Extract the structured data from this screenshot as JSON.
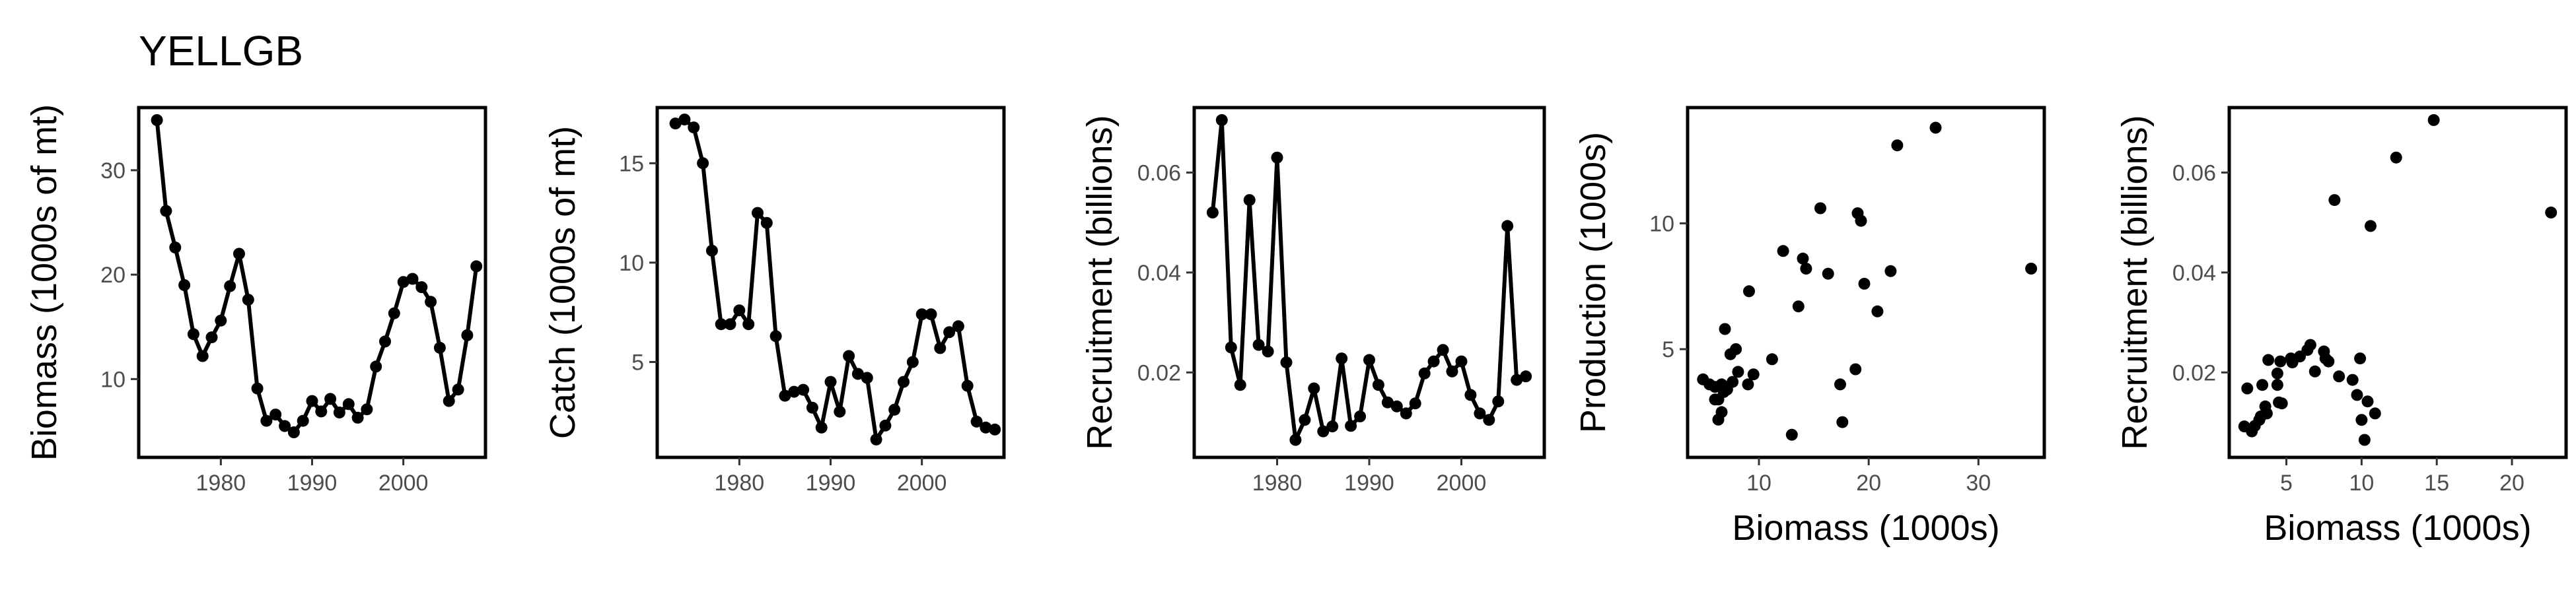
{
  "title": "YELLGB",
  "chart_data": [
    {
      "type": "line",
      "xlabel": "",
      "ylabel": "Biomass (1000s of mt)",
      "xlim": [
        1971,
        2009
      ],
      "ylim": [
        2.5,
        36
      ],
      "xticks": [
        1980,
        1990,
        2000
      ],
      "yticks": [
        10,
        20,
        30
      ],
      "x": [
        1973,
        1974,
        1975,
        1976,
        1977,
        1978,
        1979,
        1980,
        1981,
        1982,
        1983,
        1984,
        1985,
        1986,
        1987,
        1988,
        1989,
        1990,
        1991,
        1992,
        1993,
        1994,
        1995,
        1996,
        1997,
        1998,
        1999,
        2000,
        2001,
        2002,
        2003,
        2004,
        2005,
        2006,
        2007,
        2008
      ],
      "y": [
        34.8,
        26.1,
        22.6,
        19.0,
        14.3,
        12.2,
        14.0,
        15.6,
        18.9,
        22.0,
        17.6,
        9.1,
        6.0,
        6.6,
        5.5,
        4.9,
        6.0,
        7.9,
        6.9,
        8.1,
        6.8,
        7.6,
        6.3,
        7.1,
        11.2,
        13.6,
        16.3,
        19.3,
        19.6,
        18.8,
        17.4,
        13.0,
        7.9,
        9.0,
        14.2,
        20.8
      ]
    },
    {
      "type": "line",
      "xlabel": "",
      "ylabel": "Catch (1000s of mt)",
      "xlim": [
        1971,
        2009
      ],
      "ylim": [
        0.2,
        17.8
      ],
      "xticks": [
        1980,
        1990,
        2000
      ],
      "yticks": [
        5,
        10,
        15
      ],
      "x": [
        1973,
        1974,
        1975,
        1976,
        1977,
        1978,
        1979,
        1980,
        1981,
        1982,
        1983,
        1984,
        1985,
        1986,
        1987,
        1988,
        1989,
        1990,
        1991,
        1992,
        1993,
        1994,
        1995,
        1996,
        1997,
        1998,
        1999,
        2000,
        2001,
        2002,
        2003,
        2004,
        2005,
        2006,
        2007,
        2008
      ],
      "y": [
        17.0,
        17.2,
        16.8,
        15.0,
        10.6,
        6.9,
        6.9,
        7.6,
        6.9,
        12.5,
        12.0,
        6.3,
        3.3,
        3.5,
        3.6,
        2.7,
        1.7,
        4.0,
        2.5,
        5.3,
        4.4,
        4.2,
        1.1,
        1.8,
        2.6,
        4.0,
        5.0,
        7.4,
        7.4,
        5.7,
        6.5,
        6.8,
        3.8,
        2.0,
        1.7,
        1.6
      ]
    },
    {
      "type": "line",
      "xlabel": "",
      "ylabel": "Recruitment (billions)",
      "xlim": [
        1971,
        2009
      ],
      "ylim": [
        0.003,
        0.073
      ],
      "xticks": [
        1980,
        1990,
        2000
      ],
      "yticks": [
        0.02,
        0.04,
        0.06
      ],
      "ytick_labels": [
        "0.02",
        "0.04",
        "0.06"
      ],
      "x": [
        1973,
        1974,
        1975,
        1976,
        1977,
        1978,
        1979,
        1980,
        1981,
        1982,
        1983,
        1984,
        1985,
        1986,
        1987,
        1988,
        1989,
        1990,
        1991,
        1992,
        1993,
        1994,
        1995,
        1996,
        1997,
        1998,
        1999,
        2000,
        2001,
        2002,
        2003,
        2004,
        2005,
        2006,
        2007
      ],
      "y": [
        0.052,
        0.0705,
        0.025,
        0.0175,
        0.0545,
        0.0255,
        0.0242,
        0.063,
        0.022,
        0.0065,
        0.0105,
        0.0168,
        0.0082,
        0.0092,
        0.0228,
        0.0093,
        0.0112,
        0.0225,
        0.0175,
        0.014,
        0.0132,
        0.0118,
        0.0138,
        0.0198,
        0.0222,
        0.0245,
        0.0202,
        0.0222,
        0.0155,
        0.0118,
        0.0105,
        0.0142,
        0.0493,
        0.0185,
        0.0192
      ]
    },
    {
      "type": "scatter",
      "xlabel": "Biomass (1000s)",
      "ylabel": "Production (1000s)",
      "xlim": [
        3.5,
        36
      ],
      "ylim": [
        0.7,
        14.6
      ],
      "xticks": [
        10,
        20,
        30
      ],
      "yticks": [
        5,
        10
      ],
      "x": [
        4.9,
        5.5,
        6.0,
        6.3,
        6.0,
        6.6,
        6.9,
        7.6,
        8.1,
        6.8,
        7.1,
        7.9,
        9.0,
        6.3,
        7.4,
        9.1,
        11.2,
        12.2,
        13.0,
        13.6,
        14.0,
        14.3,
        15.6,
        16.3,
        17.4,
        17.6,
        18.8,
        19.0,
        19.3,
        19.6,
        20.8,
        22.0,
        22.6,
        26.1,
        34.8,
        6.6,
        9.5
      ],
      "y": [
        3.8,
        3.6,
        3.5,
        2.2,
        3.0,
        2.5,
        5.8,
        3.7,
        4.1,
        3.3,
        3.4,
        5.0,
        3.6,
        3.0,
        4.8,
        7.3,
        4.6,
        8.9,
        1.6,
        6.7,
        8.6,
        8.2,
        10.6,
        8.0,
        3.6,
        2.1,
        4.2,
        10.4,
        10.1,
        7.6,
        6.5,
        8.1,
        13.1,
        13.8,
        8.2,
        3.6,
        4.0
      ]
    },
    {
      "type": "scatter",
      "xlabel": "Biomass (1000s)",
      "ylabel": "Recruitment (billions)",
      "xlim": [
        1.2,
        23.6
      ],
      "ylim": [
        0.003,
        0.073
      ],
      "xticks": [
        5,
        10,
        15,
        20
      ],
      "yticks": [
        0.02,
        0.04,
        0.06
      ],
      "ytick_labels": [
        "0.02",
        "0.04",
        "0.06"
      ],
      "x": [
        22.6,
        14.8,
        12.3,
        10.9,
        8.2,
        7.5,
        7.6,
        6.6,
        5.4,
        3.2,
        2.2,
        2.7,
        2.9,
        3.3,
        3.8,
        4.4,
        4.5,
        4.7,
        3.6,
        3.7,
        4.4,
        4.6,
        6.4,
        6.9,
        7.8,
        9.7,
        10.0,
        10.4,
        10.6,
        9.4,
        8.5,
        2.4,
        3.4,
        5.3,
        5.9,
        9.9,
        10.2
      ],
      "y": [
        0.052,
        0.0705,
        0.063,
        0.0118,
        0.0545,
        0.0242,
        0.0228,
        0.0255,
        0.022,
        0.0105,
        0.0092,
        0.0082,
        0.0093,
        0.0112,
        0.0225,
        0.0175,
        0.014,
        0.0138,
        0.0132,
        0.0118,
        0.0198,
        0.0222,
        0.0245,
        0.0202,
        0.0222,
        0.0155,
        0.0105,
        0.0142,
        0.0493,
        0.0185,
        0.0192,
        0.0168,
        0.0175,
        0.0228,
        0.0232,
        0.0228,
        0.0065
      ]
    }
  ]
}
